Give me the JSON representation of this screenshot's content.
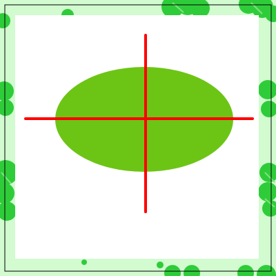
{
  "colors": {
    "background": "#ffffff",
    "outer_frame": "#d2fbd0",
    "clover": "#2fcc3a",
    "clover_vein": "#7fe37c",
    "panel": "#ffffff",
    "ellipse": "#6cc515",
    "crosshair": "#ff0000",
    "border_line": "#000000"
  },
  "icons": {
    "decor": "clover-leaf-icon",
    "ellipse": "ellipse-shape",
    "crosshair": "crosshair-lines"
  }
}
